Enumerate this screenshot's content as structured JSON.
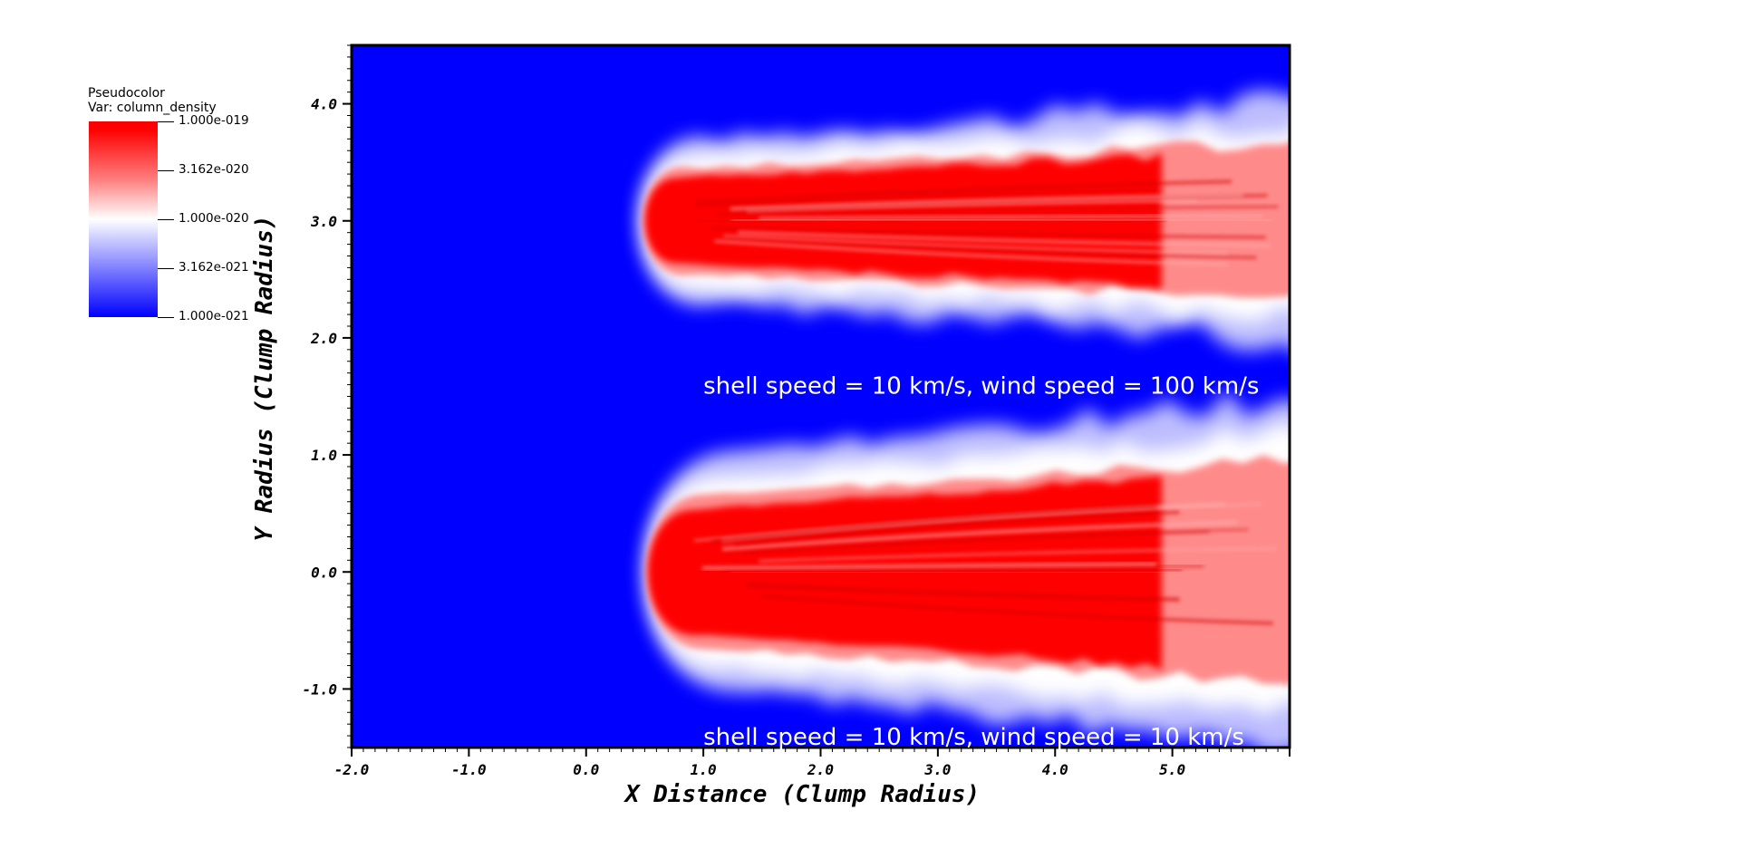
{
  "legend": {
    "title_line1": "Pseudocolor",
    "title_line2": "Var: column_density",
    "labels": [
      "1.000e-019",
      "3.162e-020",
      "1.000e-020",
      "3.162e-021",
      "1.000e-021"
    ],
    "colors": {
      "high": "#ff0000",
      "mid": "#ffffff",
      "low": "#0000ff"
    }
  },
  "chart_data": {
    "type": "heatmap",
    "variable": "column_density",
    "colorscale": "log",
    "clim": [
      1e-21,
      1e-19
    ],
    "xlabel": "X Distance (Clump Radius)",
    "ylabel": "Y Radius (Clump Radius)",
    "xlim": [
      -2.0,
      6.0
    ],
    "ylim": [
      -1.5,
      4.5
    ],
    "x_ticks": [
      "-2.0",
      "-1.0",
      "0.0",
      "1.0",
      "2.0",
      "3.0",
      "4.0",
      "5.0"
    ],
    "x_tick_values": [
      -2,
      -1,
      0,
      1,
      2,
      3,
      4,
      5
    ],
    "y_ticks": [
      "-1.0",
      "0.0",
      "1.0",
      "2.0",
      "3.0",
      "4.0"
    ],
    "y_tick_values": [
      -1,
      0,
      1,
      2,
      3,
      4
    ],
    "annotations": [
      "shell speed = 10 km/s, wind speed = 100 km/s",
      "shell speed = 10 km/s, wind speed = 10 km/s"
    ],
    "clumps": [
      {
        "label": "wind speed = 100 km/s",
        "center_y": 3.0,
        "head_x": 0.4,
        "tail_x": 6.0,
        "half_width": 0.45
      },
      {
        "label": "wind speed = 10 km/s",
        "center_y": 0.0,
        "head_x": 0.4,
        "tail_x": 6.0,
        "half_width": 0.65
      }
    ],
    "background_color": "#0000ff"
  }
}
